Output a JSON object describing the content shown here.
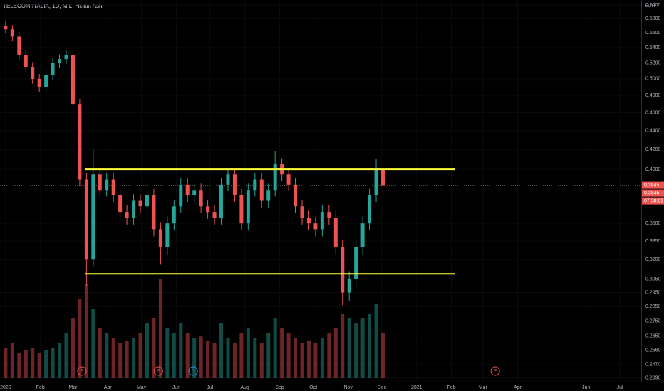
{
  "chart_data": {
    "type": "candlestick",
    "title": "TELECOM ITALIA, 1D, MIL, Heikin Ashi",
    "currency": "EUR",
    "log_scale": true,
    "up_color": "#26a69a",
    "down_color": "#ef5350",
    "xlim": [
      -5,
      566
    ],
    "ylim": [
      0.2355,
      0.6074
    ],
    "xticks": [
      {
        "value": 0,
        "label": "2020"
      },
      {
        "value": 31,
        "label": "Feb"
      },
      {
        "value": 60,
        "label": "Mar"
      },
      {
        "value": 91,
        "label": "Apr"
      },
      {
        "value": 121,
        "label": "May"
      },
      {
        "value": 152,
        "label": "Jun"
      },
      {
        "value": 182,
        "label": "Jul"
      },
      {
        "value": 213,
        "label": "Aug"
      },
      {
        "value": 244,
        "label": "Sep"
      },
      {
        "value": 274,
        "label": "Oct"
      },
      {
        "value": 305,
        "label": "Nov"
      },
      {
        "value": 335,
        "label": "Dec"
      },
      {
        "value": 366,
        "label": "2021"
      },
      {
        "value": 397,
        "label": "Feb"
      },
      {
        "value": 425,
        "label": "Mar"
      },
      {
        "value": 456,
        "label": "Apr"
      },
      {
        "value": 517,
        "label": "Jun"
      },
      {
        "value": 547,
        "label": "Jul"
      }
    ],
    "yticks": [
      {
        "value": 0.6,
        "label": "0.6000"
      },
      {
        "value": 0.58,
        "label": "0.5800"
      },
      {
        "value": 0.56,
        "label": "0.5600"
      },
      {
        "value": 0.54,
        "label": "0.5400"
      },
      {
        "value": 0.52,
        "label": "0.5200"
      },
      {
        "value": 0.5,
        "label": "0.5000"
      },
      {
        "value": 0.48,
        "label": "0.4800"
      },
      {
        "value": 0.46,
        "label": "0.4600"
      },
      {
        "value": 0.44,
        "label": "0.4400"
      },
      {
        "value": 0.42,
        "label": "0.4200"
      },
      {
        "value": 0.4,
        "label": "0.4000"
      },
      {
        "value": 0.35,
        "label": "0.3500"
      },
      {
        "value": 0.335,
        "label": "0.3350"
      },
      {
        "value": 0.32,
        "label": "0.3200"
      },
      {
        "value": 0.305,
        "label": "0.3050"
      },
      {
        "value": 0.295,
        "label": "0.2950"
      },
      {
        "value": 0.285,
        "label": "0.2850"
      },
      {
        "value": 0.275,
        "label": "0.2750"
      },
      {
        "value": 0.265,
        "label": "0.2650"
      },
      {
        "value": 0.256,
        "label": "0.2560"
      },
      {
        "value": 0.247,
        "label": "0.2470"
      },
      {
        "value": 0.239,
        "label": "0.2390"
      }
    ],
    "x": [
      0,
      6,
      12,
      18,
      24,
      30,
      36,
      42,
      48,
      54,
      60,
      66,
      72,
      78,
      84,
      90,
      96,
      102,
      108,
      114,
      120,
      126,
      132,
      138,
      144,
      150,
      156,
      162,
      168,
      174,
      180,
      186,
      192,
      198,
      204,
      210,
      216,
      222,
      228,
      234,
      240,
      246,
      252,
      258,
      264,
      270,
      276,
      282,
      288,
      294,
      300,
      306,
      312,
      318,
      324,
      330,
      336
    ],
    "open": [
      0.57,
      0.565,
      0.555,
      0.53,
      0.515,
      0.5,
      0.49,
      0.505,
      0.52,
      0.525,
      0.53,
      0.47,
      0.39,
      0.32,
      0.395,
      0.38,
      0.39,
      0.375,
      0.36,
      0.355,
      0.37,
      0.365,
      0.375,
      0.345,
      0.33,
      0.35,
      0.365,
      0.385,
      0.375,
      0.38,
      0.365,
      0.36,
      0.355,
      0.385,
      0.395,
      0.375,
      0.35,
      0.38,
      0.39,
      0.37,
      0.38,
      0.405,
      0.395,
      0.385,
      0.365,
      0.355,
      0.35,
      0.345,
      0.36,
      0.355,
      0.33,
      0.295,
      0.305,
      0.33,
      0.35,
      0.375,
      0.4
    ],
    "high": [
      0.576,
      0.571,
      0.561,
      0.536,
      0.521,
      0.506,
      0.511,
      0.526,
      0.531,
      0.536,
      0.536,
      0.476,
      0.396,
      0.42,
      0.401,
      0.396,
      0.396,
      0.381,
      0.366,
      0.376,
      0.376,
      0.381,
      0.381,
      0.351,
      0.356,
      0.371,
      0.391,
      0.391,
      0.386,
      0.386,
      0.371,
      0.366,
      0.391,
      0.401,
      0.401,
      0.381,
      0.386,
      0.396,
      0.396,
      0.386,
      0.418,
      0.411,
      0.401,
      0.391,
      0.371,
      0.361,
      0.356,
      0.366,
      0.366,
      0.361,
      0.336,
      0.311,
      0.336,
      0.356,
      0.381,
      0.41,
      0.406
    ],
    "low": [
      0.559,
      0.549,
      0.524,
      0.509,
      0.494,
      0.484,
      0.484,
      0.499,
      0.514,
      0.519,
      0.464,
      0.384,
      0.3,
      0.314,
      0.374,
      0.374,
      0.369,
      0.354,
      0.349,
      0.349,
      0.359,
      0.359,
      0.339,
      0.316,
      0.324,
      0.344,
      0.359,
      0.369,
      0.369,
      0.359,
      0.354,
      0.349,
      0.349,
      0.379,
      0.369,
      0.344,
      0.344,
      0.374,
      0.364,
      0.364,
      0.374,
      0.389,
      0.379,
      0.359,
      0.349,
      0.344,
      0.339,
      0.339,
      0.349,
      0.324,
      0.286,
      0.289,
      0.299,
      0.324,
      0.344,
      0.369,
      0.378
    ],
    "close": [
      0.565,
      0.555,
      0.53,
      0.515,
      0.5,
      0.49,
      0.505,
      0.52,
      0.525,
      0.53,
      0.47,
      0.39,
      0.32,
      0.395,
      0.38,
      0.39,
      0.375,
      0.36,
      0.355,
      0.37,
      0.365,
      0.375,
      0.345,
      0.33,
      0.35,
      0.365,
      0.385,
      0.375,
      0.38,
      0.365,
      0.36,
      0.355,
      0.385,
      0.395,
      0.375,
      0.35,
      0.38,
      0.39,
      0.37,
      0.38,
      0.405,
      0.395,
      0.385,
      0.365,
      0.355,
      0.35,
      0.345,
      0.36,
      0.355,
      0.33,
      0.295,
      0.305,
      0.33,
      0.35,
      0.375,
      0.4,
      0.3845
    ],
    "vlim": [
      0,
      100
    ],
    "volume": [
      30,
      35,
      25,
      28,
      30,
      25,
      28,
      30,
      35,
      45,
      60,
      80,
      95,
      70,
      50,
      45,
      40,
      35,
      38,
      40,
      45,
      55,
      60,
      100,
      50,
      45,
      55,
      45,
      40,
      42,
      38,
      35,
      55,
      40,
      35,
      45,
      50,
      40,
      35,
      45,
      60,
      50,
      45,
      40,
      35,
      38,
      35,
      40,
      45,
      50,
      65,
      60,
      55,
      60,
      65,
      75,
      45
    ],
    "lines": [
      {
        "color": "#ffff3b",
        "x": [
          71,
          400
        ],
        "y": [
          0.4,
          0.4
        ]
      },
      {
        "color": "#ffff3b",
        "x": [
          71,
          400
        ],
        "y": [
          0.309,
          0.309
        ]
      }
    ],
    "last_price": 0.3845,
    "last_price_labels": [
      "0.3845",
      "0.3845",
      "07:30:09"
    ],
    "events": [
      {
        "x": 68,
        "label": "E",
        "color": "#ef5350"
      },
      {
        "x": 136,
        "label": "E",
        "color": "#ef5350"
      },
      {
        "x": 167,
        "label": "D",
        "color": "#2196f3"
      },
      {
        "x": 436,
        "label": "E",
        "color": "#ef5350"
      }
    ]
  }
}
